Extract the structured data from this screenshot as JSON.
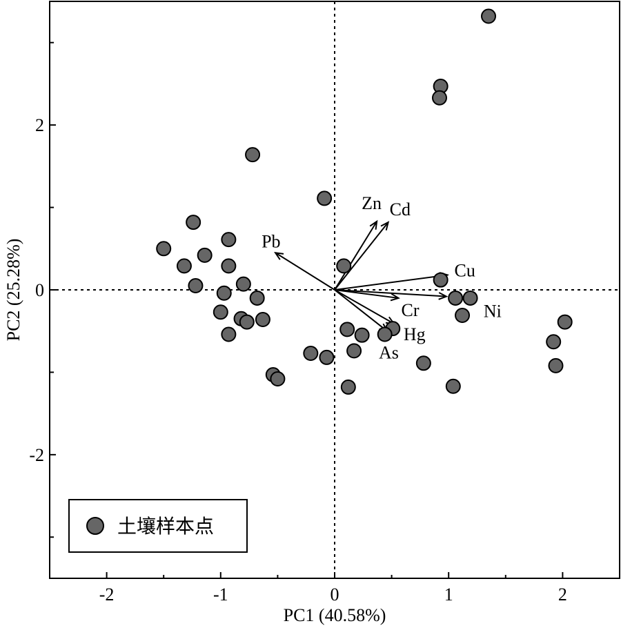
{
  "chart_data": {
    "type": "scatter",
    "xlabel": "PC1 (40.58%)",
    "ylabel": "PC2 (25.28%)",
    "xlim": [
      -2.5,
      2.5
    ],
    "ylim": [
      -3.5,
      3.5
    ],
    "x_ticks": [
      -2,
      -1,
      0,
      1,
      2
    ],
    "y_ticks": [
      -2,
      0,
      2
    ],
    "x_tick_labels": [
      "-2",
      "-1",
      "0",
      "1",
      "2"
    ],
    "y_tick_labels": [
      "-2",
      "0",
      "2"
    ],
    "zero_lines": true,
    "legend_position": "bottom-left",
    "marker_color": "#666666",
    "series": [
      {
        "name": "土壤样本点",
        "points": [
          {
            "x": 1.35,
            "y": 3.32
          },
          {
            "x": 0.93,
            "y": 2.47
          },
          {
            "x": 0.92,
            "y": 2.33
          },
          {
            "x": -0.72,
            "y": 1.64
          },
          {
            "x": -0.09,
            "y": 1.11
          },
          {
            "x": -1.24,
            "y": 0.82
          },
          {
            "x": -0.93,
            "y": 0.61
          },
          {
            "x": -1.5,
            "y": 0.5
          },
          {
            "x": -1.14,
            "y": 0.42
          },
          {
            "x": -1.32,
            "y": 0.29
          },
          {
            "x": -0.93,
            "y": 0.29
          },
          {
            "x": 0.08,
            "y": 0.29
          },
          {
            "x": 0.93,
            "y": 0.12
          },
          {
            "x": -1.22,
            "y": 0.05
          },
          {
            "x": -0.8,
            "y": 0.07
          },
          {
            "x": -0.97,
            "y": -0.04
          },
          {
            "x": -0.68,
            "y": -0.1
          },
          {
            "x": 1.06,
            "y": -0.1
          },
          {
            "x": 1.19,
            "y": -0.1
          },
          {
            "x": -1.0,
            "y": -0.27
          },
          {
            "x": 1.12,
            "y": -0.31
          },
          {
            "x": -0.82,
            "y": -0.35
          },
          {
            "x": -0.63,
            "y": -0.36
          },
          {
            "x": -0.77,
            "y": -0.39
          },
          {
            "x": 2.02,
            "y": -0.39
          },
          {
            "x": 0.51,
            "y": -0.47
          },
          {
            "x": 0.11,
            "y": -0.48
          },
          {
            "x": 0.44,
            "y": -0.54
          },
          {
            "x": -0.93,
            "y": -0.54
          },
          {
            "x": 0.24,
            "y": -0.55
          },
          {
            "x": 1.92,
            "y": -0.63
          },
          {
            "x": 0.17,
            "y": -0.74
          },
          {
            "x": -0.21,
            "y": -0.77
          },
          {
            "x": -0.07,
            "y": -0.82
          },
          {
            "x": 0.78,
            "y": -0.89
          },
          {
            "x": 1.94,
            "y": -0.92
          },
          {
            "x": -0.54,
            "y": -1.03
          },
          {
            "x": -0.5,
            "y": -1.08
          },
          {
            "x": 1.04,
            "y": -1.17
          },
          {
            "x": 0.12,
            "y": -1.18
          }
        ]
      }
    ],
    "loadings": [
      {
        "name": "Zn",
        "x": 0.37,
        "y": 0.83
      },
      {
        "name": "Cd",
        "x": 0.47,
        "y": 0.82
      },
      {
        "name": "Pb",
        "x": -0.52,
        "y": 0.45
      },
      {
        "name": "Cu",
        "x": 0.99,
        "y": 0.18
      },
      {
        "name": "Ni",
        "x": 0.98,
        "y": -0.08
      },
      {
        "name": "Cr",
        "x": 0.56,
        "y": -0.1
      },
      {
        "name": "Hg",
        "x": 0.52,
        "y": -0.41
      },
      {
        "name": "As",
        "x": 0.46,
        "y": -0.5
      }
    ]
  }
}
